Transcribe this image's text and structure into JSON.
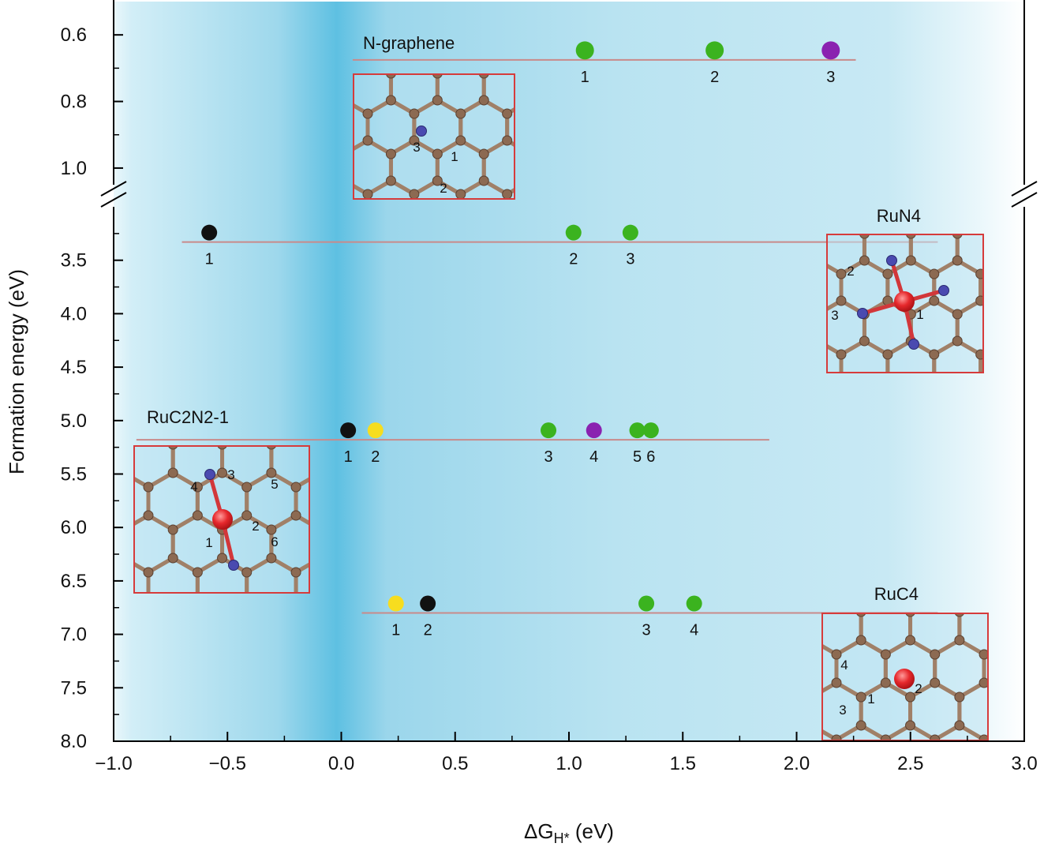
{
  "chart_data": {
    "type": "scatter",
    "xlabel": "ΔG",
    "xlabel_sub": "H*",
    "xlabel_unit": " (eV)",
    "ylabel": "Formation energy (eV)",
    "xlim": [
      -1.0,
      3.0
    ],
    "x_ticks": [
      "−1.0",
      "−0.5",
      "0.0",
      "0.5",
      "1.0",
      "1.5",
      "2.0",
      "2.5",
      "3.0"
    ],
    "x_tick_values": [
      -1.0,
      -0.5,
      0.0,
      0.5,
      1.0,
      1.5,
      2.0,
      2.5,
      3.0
    ],
    "y_axis_broken": true,
    "y_upper_range": [
      0.5,
      1.05
    ],
    "y_upper_ticks": [
      "0.6",
      "0.8",
      "1.0"
    ],
    "y_upper_tick_values": [
      0.6,
      0.8,
      1.0
    ],
    "y_lower_range": [
      3.0,
      8.0
    ],
    "y_lower_ticks": [
      "3.5",
      "4.0",
      "4.5",
      "5.0",
      "5.5",
      "6.0",
      "6.5",
      "7.0",
      "7.5",
      "8.0"
    ],
    "y_lower_tick_values": [
      3.5,
      4.0,
      4.5,
      5.0,
      5.5,
      6.0,
      6.5,
      7.0,
      7.5,
      8.0
    ],
    "background": "gradient-blue",
    "colors": {
      "green": "#3bb31f",
      "purple": "#8a22b0",
      "black": "#111111",
      "yellow": "#f7dd1f",
      "line": "#c98a8a",
      "inset_border": "#d63b3b",
      "axis": "#000000"
    },
    "series": [
      {
        "name": "N-graphene",
        "formation_energy": 0.675,
        "line_x": [
          0.05,
          2.26
        ],
        "points": [
          {
            "label": "1",
            "x": 1.07,
            "color": "green"
          },
          {
            "label": "2",
            "x": 1.64,
            "color": "green"
          },
          {
            "label": "3",
            "x": 2.15,
            "color": "purple"
          }
        ]
      },
      {
        "name": "RuN4",
        "formation_energy": 3.33,
        "line_x": [
          -0.7,
          2.62
        ],
        "points": [
          {
            "label": "1",
            "x": -0.58,
            "color": "black"
          },
          {
            "label": "2",
            "x": 1.02,
            "color": "green"
          },
          {
            "label": "3",
            "x": 1.27,
            "color": "green"
          }
        ]
      },
      {
        "name": "RuC2N2-1",
        "formation_energy": 5.18,
        "line_x": [
          -0.9,
          1.88
        ],
        "points": [
          {
            "label": "1",
            "x": 0.03,
            "color": "black"
          },
          {
            "label": "2",
            "x": 0.15,
            "color": "yellow"
          },
          {
            "label": "3",
            "x": 0.91,
            "color": "green"
          },
          {
            "label": "4",
            "x": 1.11,
            "color": "purple"
          },
          {
            "label": "5",
            "x": 1.3,
            "color": "green"
          },
          {
            "label": "6",
            "x": 1.36,
            "color": "green"
          }
        ]
      },
      {
        "name": "RuC4",
        "formation_energy": 6.8,
        "line_x": [
          0.09,
          2.62
        ],
        "points": [
          {
            "label": "1",
            "x": 0.24,
            "color": "yellow"
          },
          {
            "label": "2",
            "x": 0.38,
            "color": "black"
          },
          {
            "label": "3",
            "x": 1.34,
            "color": "green"
          },
          {
            "label": "4",
            "x": 1.55,
            "color": "green"
          }
        ]
      }
    ],
    "insets": [
      {
        "name": "N-graphene",
        "site_labels": [
          "3",
          "1",
          "2"
        ]
      },
      {
        "name": "RuN4",
        "site_labels": [
          "2",
          "3",
          "1"
        ]
      },
      {
        "name": "RuC2N2-1",
        "site_labels": [
          "4",
          "3",
          "5",
          "2",
          "1",
          "6"
        ]
      },
      {
        "name": "RuC4",
        "site_labels": [
          "4",
          "1",
          "2",
          "3"
        ]
      }
    ]
  }
}
